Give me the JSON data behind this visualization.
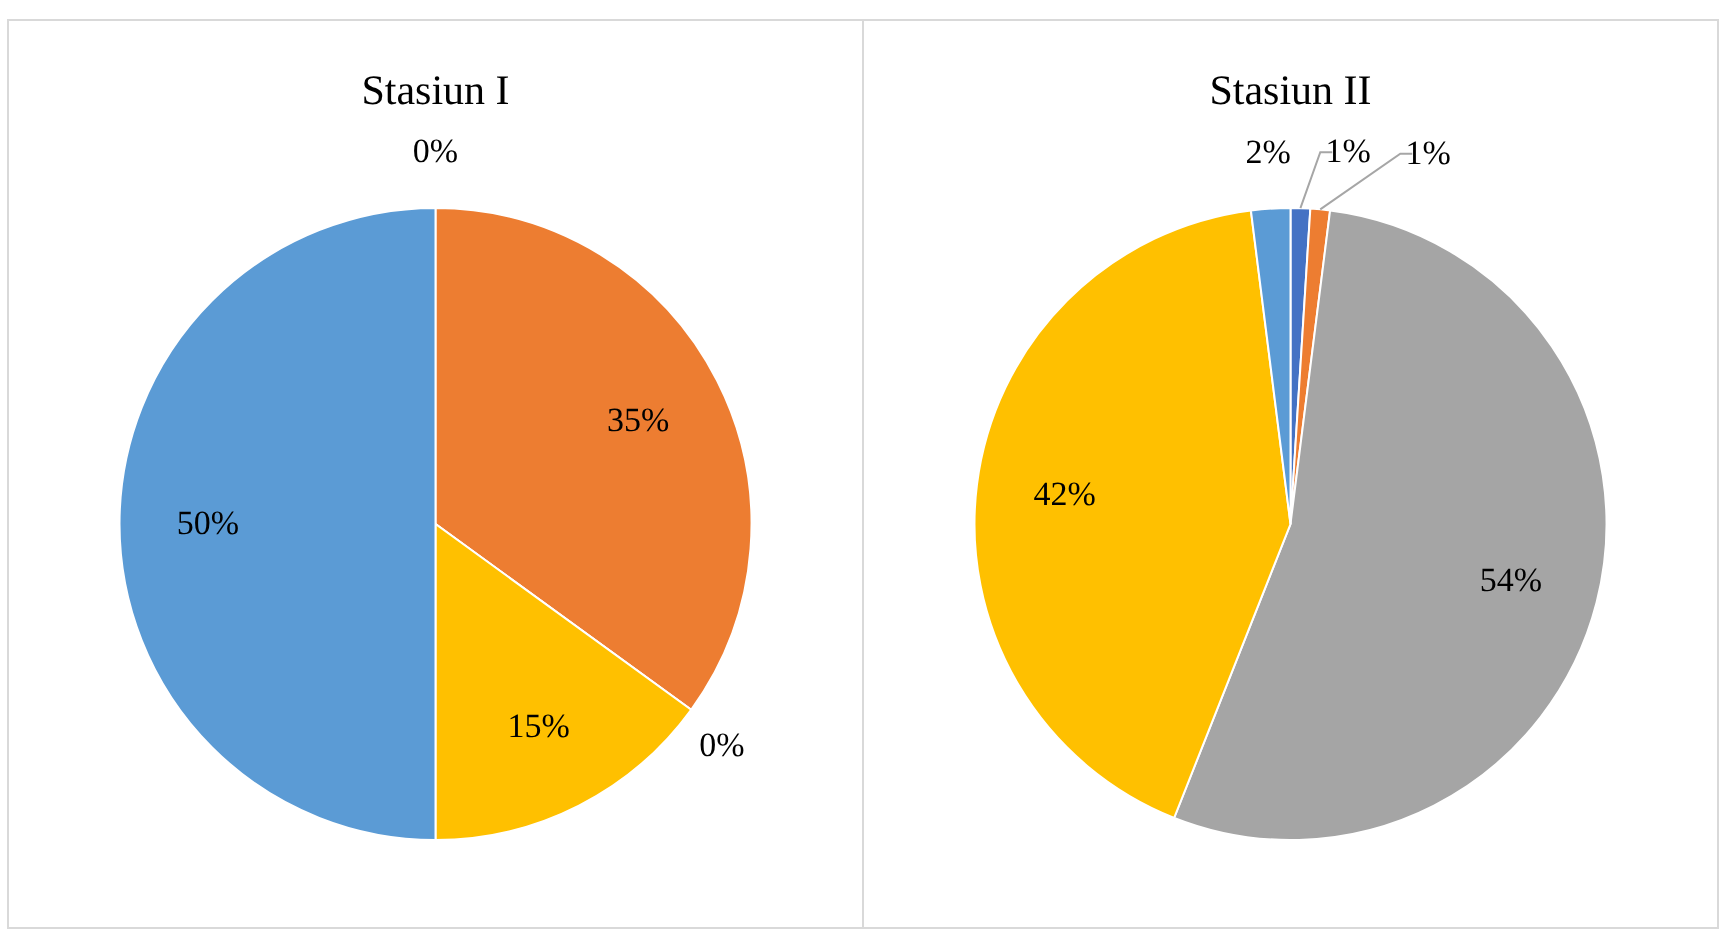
{
  "chart_data": [
    {
      "type": "pie",
      "title": "Stasiun I",
      "categories": [
        null,
        null,
        null,
        null,
        null
      ],
      "values": [
        0,
        35,
        0,
        15,
        50
      ],
      "colors": [
        "#4472c4",
        "#ed7d31",
        "#a5a5a5",
        "#ffc000",
        "#5b9bd5"
      ],
      "value_labels": [
        "0%",
        "35%",
        "0%",
        "15%",
        "50%"
      ]
    },
    {
      "type": "pie",
      "title": "Stasiun II",
      "categories": [
        null,
        null,
        null,
        null,
        null
      ],
      "values": [
        1,
        1,
        54,
        42,
        2
      ],
      "colors": [
        "#4472c4",
        "#ed7d31",
        "#a5a5a5",
        "#ffc000",
        "#5b9bd5"
      ],
      "value_labels": [
        "1%",
        "1%",
        "54%",
        "42%",
        "2%"
      ]
    }
  ]
}
